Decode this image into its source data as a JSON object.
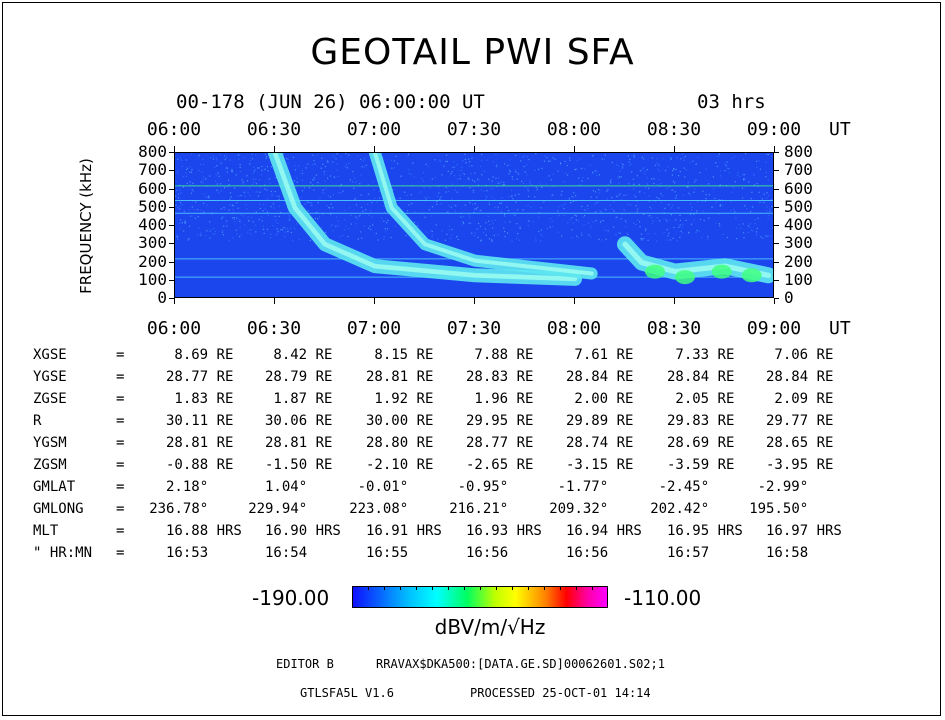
{
  "title": "GEOTAIL PWI SFA",
  "header": {
    "date_label": "00-178 (JUN 26) 06:00:00 UT",
    "duration_label": "03 hrs"
  },
  "chart_data": {
    "type": "heatmap",
    "title": "GEOTAIL PWI SFA",
    "xlabel": "UT",
    "ylabel": "FREQUENCY (kHz)",
    "x_ticks": [
      "06:00",
      "06:30",
      "07:00",
      "07:30",
      "08:00",
      "08:30",
      "09:00"
    ],
    "y_ticks": [
      "800",
      "700",
      "600",
      "500",
      "400",
      "300",
      "200",
      "100",
      "0"
    ],
    "xlim": [
      "06:00",
      "09:00"
    ],
    "ylim": [
      0,
      800
    ],
    "y_unit": "kHz",
    "colorbar": {
      "min_label": "-190.00",
      "max_label": "-110.00",
      "unit": "dBV/m/√Hz",
      "colors": [
        "#1010ff",
        "#00c0ff",
        "#00ffff",
        "#00ff60",
        "#c0ff00",
        "#ffff00",
        "#ff8000",
        "#ff0000",
        "#ff00a0",
        "#ff00ff"
      ]
    },
    "features": [
      {
        "name": "drifting emission 1",
        "points": [
          [
            "06:30",
            800
          ],
          [
            "06:36",
            500
          ],
          [
            "06:45",
            300
          ],
          [
            "07:00",
            180
          ],
          [
            "07:30",
            130
          ],
          [
            "08:00",
            110
          ]
        ]
      },
      {
        "name": "drifting emission 2",
        "points": [
          [
            "07:00",
            800
          ],
          [
            "07:05",
            500
          ],
          [
            "07:15",
            300
          ],
          [
            "07:30",
            210
          ],
          [
            "07:50",
            170
          ],
          [
            "08:05",
            140
          ]
        ]
      },
      {
        "name": "banded emission",
        "points": [
          [
            "08:15",
            300
          ],
          [
            "08:20",
            200
          ],
          [
            "08:30",
            150
          ],
          [
            "08:45",
            180
          ],
          [
            "08:58",
            130
          ]
        ]
      }
    ],
    "background_color": "#1b46ee"
  },
  "ephemeris": {
    "rows": [
      {
        "label": "XGSE",
        "sep": "=",
        "values": [
          "8.69 RE",
          "8.42 RE",
          "8.15 RE",
          "7.88 RE",
          "7.61 RE",
          "7.33 RE",
          "7.06 RE"
        ]
      },
      {
        "label": "YGSE",
        "sep": "=",
        "values": [
          "28.77 RE",
          "28.79 RE",
          "28.81 RE",
          "28.83 RE",
          "28.84 RE",
          "28.84 RE",
          "28.84 RE"
        ]
      },
      {
        "label": "ZGSE",
        "sep": "=",
        "values": [
          "1.83 RE",
          "1.87 RE",
          "1.92 RE",
          "1.96 RE",
          "2.00 RE",
          "2.05 RE",
          "2.09 RE"
        ]
      },
      {
        "label": "R",
        "sep": "=",
        "values": [
          "30.11 RE",
          "30.06 RE",
          "30.00 RE",
          "29.95 RE",
          "29.89 RE",
          "29.83 RE",
          "29.77 RE"
        ]
      },
      {
        "label": "YGSM",
        "sep": "=",
        "values": [
          "28.81 RE",
          "28.81 RE",
          "28.80 RE",
          "28.77 RE",
          "28.74 RE",
          "28.69 RE",
          "28.65 RE"
        ]
      },
      {
        "label": "ZGSM",
        "sep": "=",
        "values": [
          "-0.88 RE",
          "-1.50 RE",
          "-2.10 RE",
          "-2.65 RE",
          "-3.15 RE",
          "-3.59 RE",
          "-3.95 RE"
        ]
      },
      {
        "label": "GMLAT",
        "sep": "=",
        "values": [
          "2.18°",
          "1.04°",
          "-0.01°",
          "-0.95°",
          "-1.77°",
          "-2.45°",
          "-2.99°"
        ]
      },
      {
        "label": "GMLONG",
        "sep": "=",
        "values": [
          "236.78°",
          "229.94°",
          "223.08°",
          "216.21°",
          "209.32°",
          "202.42°",
          "195.50°"
        ]
      },
      {
        "label": "MLT",
        "sep": "=",
        "values": [
          "16.88 HRS",
          "16.90 HRS",
          "16.91 HRS",
          "16.93 HRS",
          "16.94 HRS",
          "16.95 HRS",
          "16.97 HRS"
        ]
      },
      {
        "label": "\" HR:MN",
        "sep": "=",
        "values": [
          "16:53",
          "16:54",
          "16:55",
          "16:56",
          "16:56",
          "16:57",
          "16:58"
        ]
      }
    ]
  },
  "footer": {
    "editor_label": "EDITOR B",
    "path": "RRAVAX$DKA500:[DATA.GE.SD]00062601.S02;1",
    "program": "GTLSFA5L V1.6",
    "processed": "PROCESSED 25-OCT-01  14:14"
  }
}
